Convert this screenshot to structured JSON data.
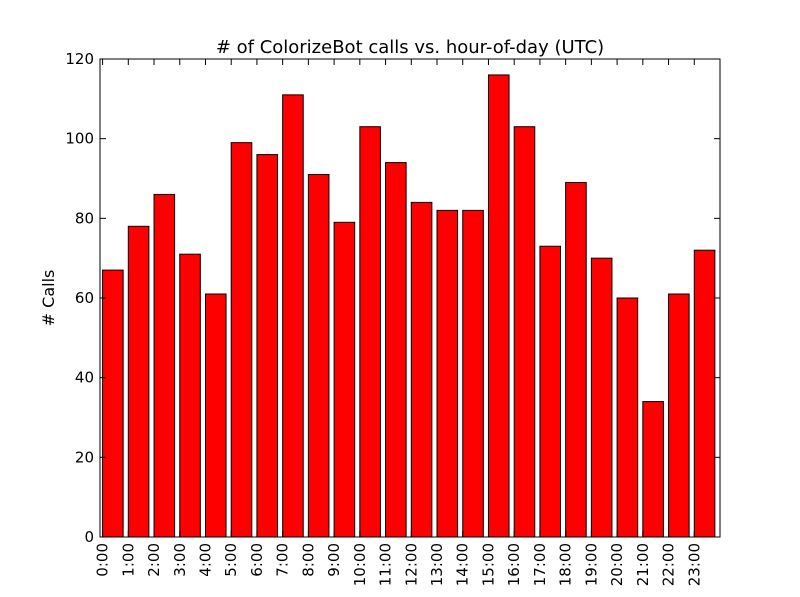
{
  "chart_data": {
    "type": "bar",
    "title": "# of ColorizeBot calls vs. hour-of-day (UTC)",
    "xlabel": "",
    "ylabel": "# Calls",
    "categories": [
      "0:00",
      "1:00",
      "2:00",
      "3:00",
      "4:00",
      "5:00",
      "6:00",
      "7:00",
      "8:00",
      "9:00",
      "10:00",
      "11:00",
      "12:00",
      "13:00",
      "14:00",
      "15:00",
      "16:00",
      "17:00",
      "18:00",
      "19:00",
      "20:00",
      "21:00",
      "22:00",
      "23:00"
    ],
    "values": [
      67,
      78,
      86,
      71,
      61,
      99,
      96,
      111,
      91,
      79,
      103,
      94,
      84,
      82,
      82,
      116,
      103,
      73,
      89,
      70,
      60,
      34,
      61,
      72
    ],
    "ylim": [
      0,
      120
    ],
    "yticks": [
      0,
      20,
      40,
      60,
      80,
      100,
      120
    ],
    "bar_color": "#ff0000",
    "edge_color": "#000000",
    "grid": false,
    "legend": "none"
  }
}
